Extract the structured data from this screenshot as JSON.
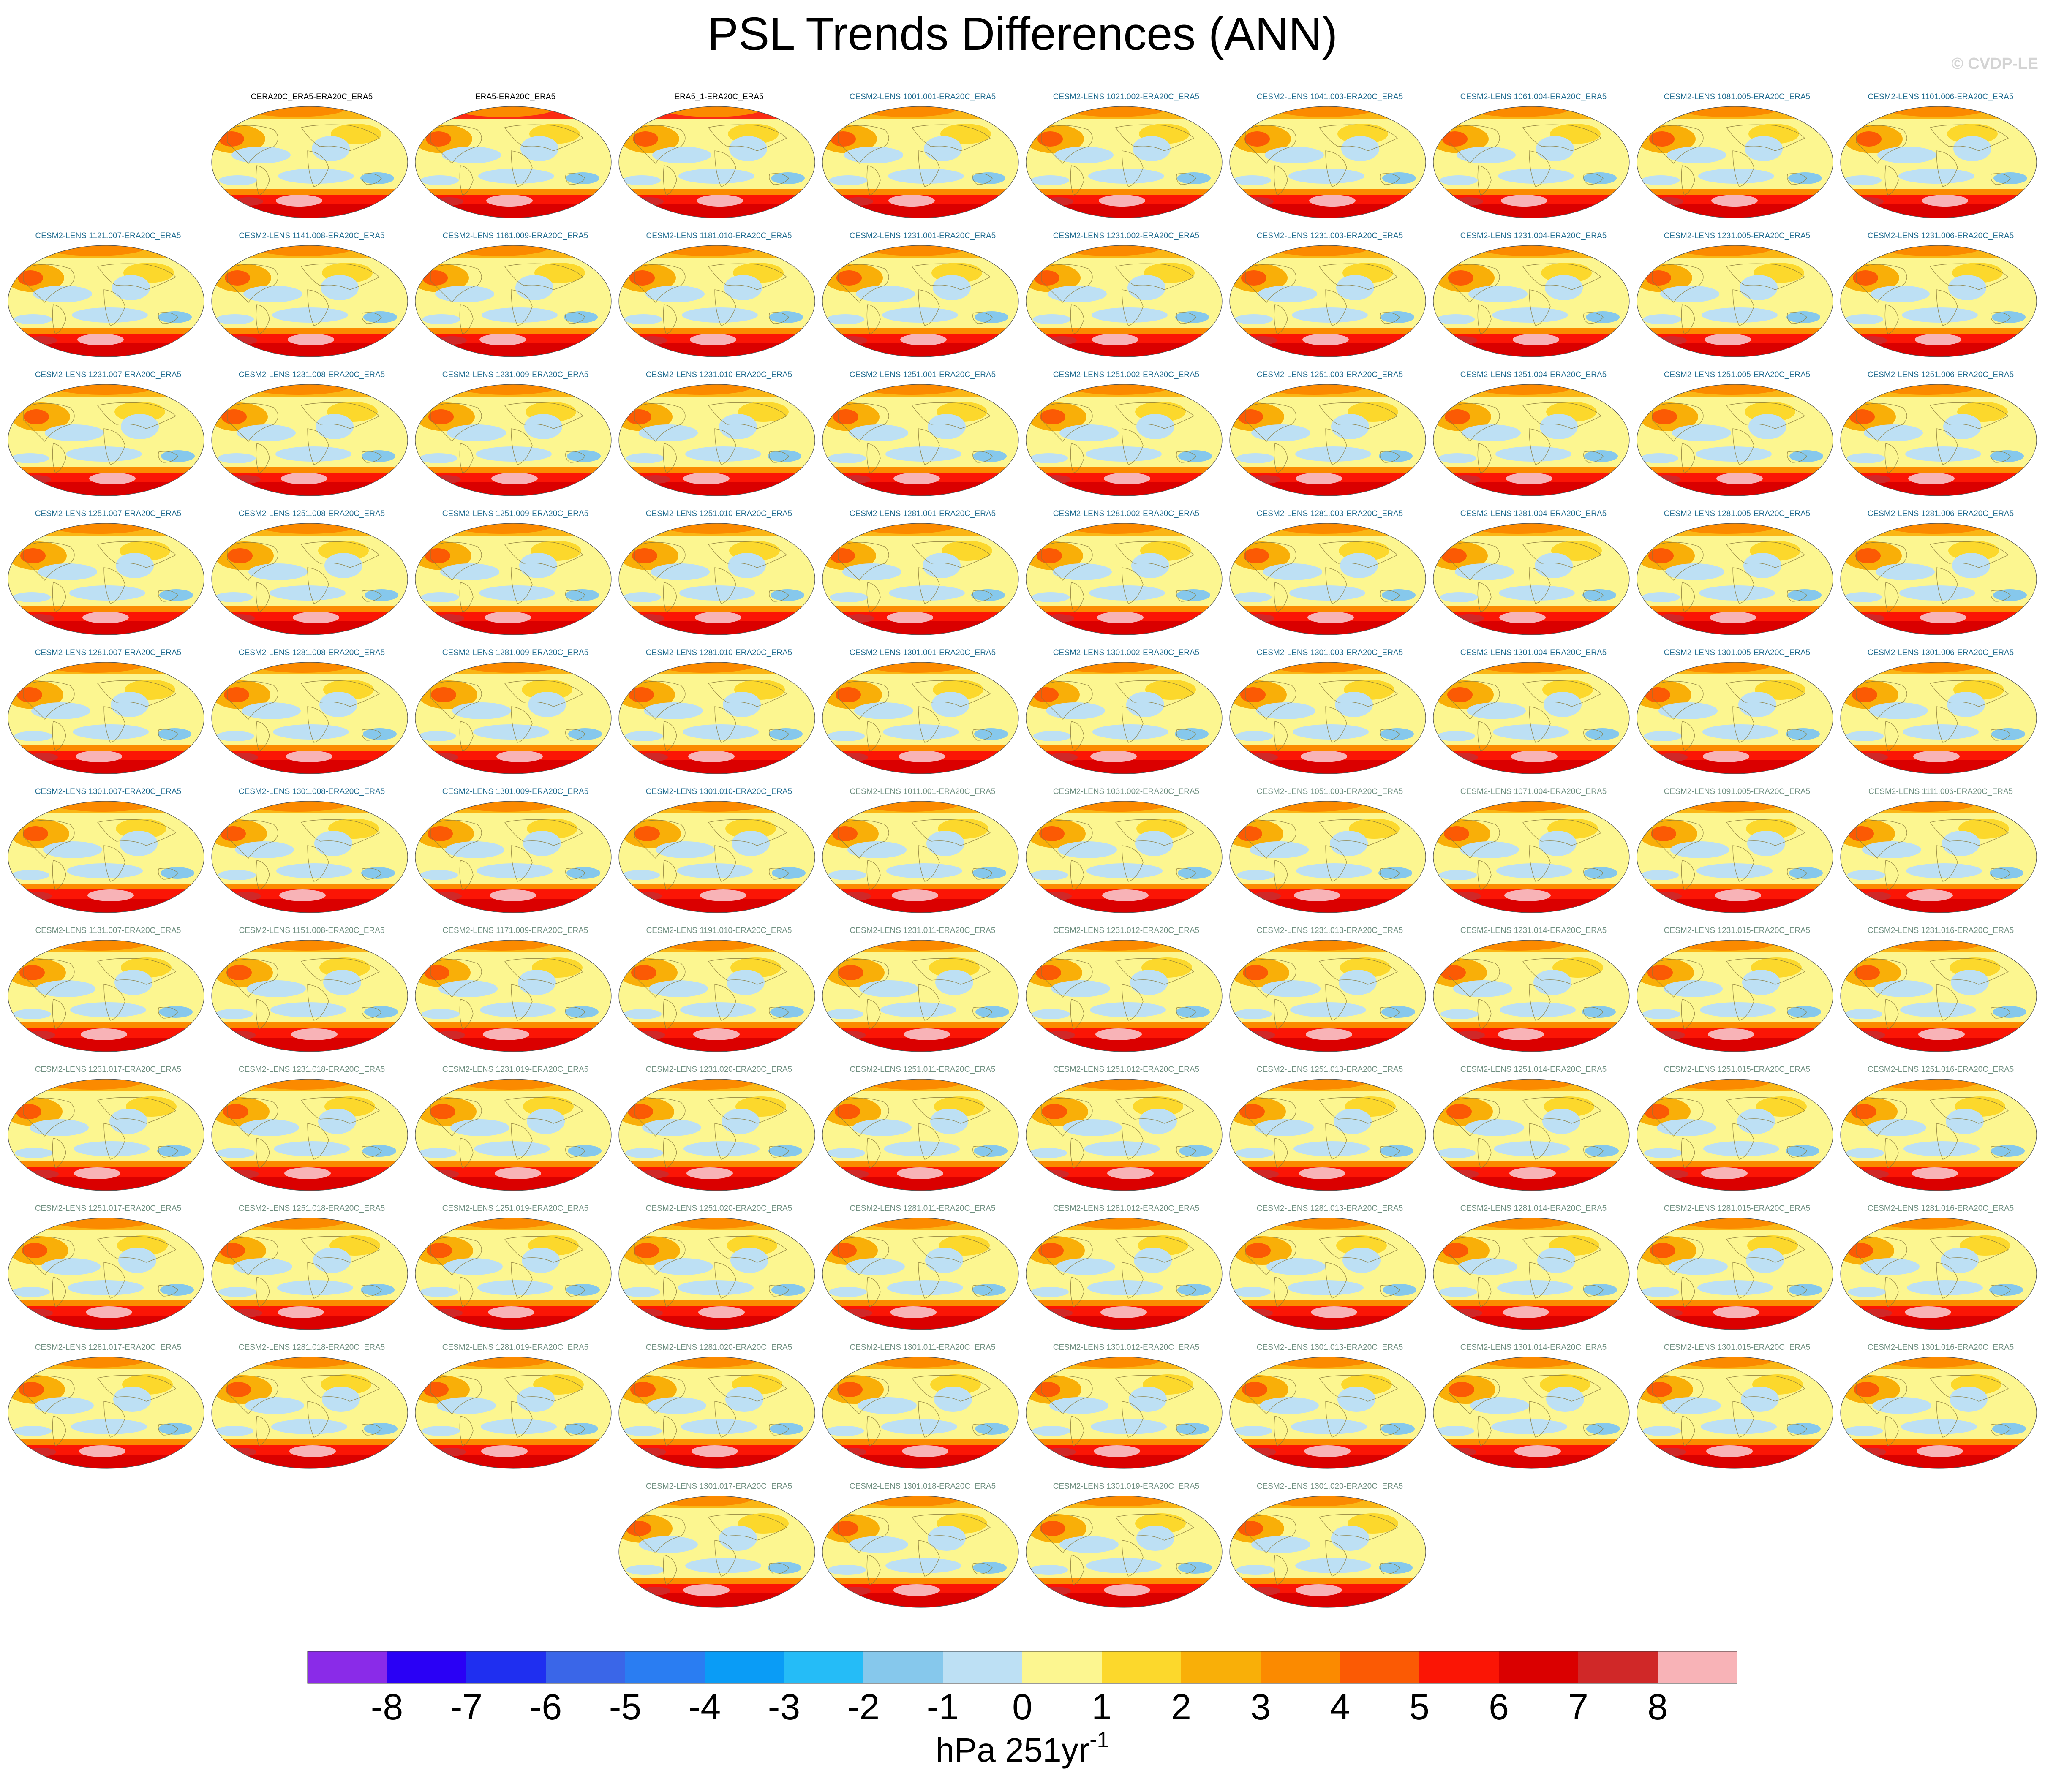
{
  "title": "PSL Trends Differences (ANN)",
  "copyright": "© CVDP-LE",
  "colorbar": {
    "ticks": [
      "-8",
      "-7",
      "-6",
      "-5",
      "-4",
      "-3",
      "-2",
      "-1",
      "0",
      "1",
      "2",
      "3",
      "4",
      "5",
      "6",
      "7",
      "8"
    ],
    "unit_main": "hPa 251yr",
    "unit_sup": "-1",
    "colors": [
      "#8a2be8",
      "#2a00f5",
      "#1f2ff0",
      "#3a66e8",
      "#2a7df2",
      "#0a9cf6",
      "#25bcf7",
      "#86c8ec",
      "#bde0f4",
      "#fcf690",
      "#fcd82c",
      "#f9af08",
      "#fb8a00",
      "#fb5a04",
      "#fb1505",
      "#da0000",
      "#d02828",
      "#f8b3b7"
    ]
  },
  "panels": [
    {
      "title": "CERA20C_ERA5-ERA20C_ERA5",
      "group": "obs"
    },
    {
      "title": "ERA5-ERA20C_ERA5",
      "group": "obs"
    },
    {
      "title": "ERA5_1-ERA20C_ERA5",
      "group": "obs"
    },
    {
      "title": "CESM2-LENS 1001.001-ERA20C_ERA5",
      "group": "g1"
    },
    {
      "title": "CESM2-LENS 1021.002-ERA20C_ERA5",
      "group": "g1"
    },
    {
      "title": "CESM2-LENS 1041.003-ERA20C_ERA5",
      "group": "g1"
    },
    {
      "title": "CESM2-LENS 1061.004-ERA20C_ERA5",
      "group": "g1"
    },
    {
      "title": "CESM2-LENS 1081.005-ERA20C_ERA5",
      "group": "g1"
    },
    {
      "title": "CESM2-LENS 1101.006-ERA20C_ERA5",
      "group": "g1"
    },
    {
      "title": "CESM2-LENS 1121.007-ERA20C_ERA5",
      "group": "g1"
    },
    {
      "title": "CESM2-LENS 1141.008-ERA20C_ERA5",
      "group": "g1"
    },
    {
      "title": "CESM2-LENS 1161.009-ERA20C_ERA5",
      "group": "g1"
    },
    {
      "title": "CESM2-LENS 1181.010-ERA20C_ERA5",
      "group": "g1"
    },
    {
      "title": "CESM2-LENS 1231.001-ERA20C_ERA5",
      "group": "g1"
    },
    {
      "title": "CESM2-LENS 1231.002-ERA20C_ERA5",
      "group": "g1"
    },
    {
      "title": "CESM2-LENS 1231.003-ERA20C_ERA5",
      "group": "g1"
    },
    {
      "title": "CESM2-LENS 1231.004-ERA20C_ERA5",
      "group": "g1"
    },
    {
      "title": "CESM2-LENS 1231.005-ERA20C_ERA5",
      "group": "g1"
    },
    {
      "title": "CESM2-LENS 1231.006-ERA20C_ERA5",
      "group": "g1"
    },
    {
      "title": "CESM2-LENS 1231.007-ERA20C_ERA5",
      "group": "g1"
    },
    {
      "title": "CESM2-LENS 1231.008-ERA20C_ERA5",
      "group": "g1"
    },
    {
      "title": "CESM2-LENS 1231.009-ERA20C_ERA5",
      "group": "g1"
    },
    {
      "title": "CESM2-LENS 1231.010-ERA20C_ERA5",
      "group": "g1"
    },
    {
      "title": "CESM2-LENS 1251.001-ERA20C_ERA5",
      "group": "g1"
    },
    {
      "title": "CESM2-LENS 1251.002-ERA20C_ERA5",
      "group": "g1"
    },
    {
      "title": "CESM2-LENS 1251.003-ERA20C_ERA5",
      "group": "g1"
    },
    {
      "title": "CESM2-LENS 1251.004-ERA20C_ERA5",
      "group": "g1"
    },
    {
      "title": "CESM2-LENS 1251.005-ERA20C_ERA5",
      "group": "g1"
    },
    {
      "title": "CESM2-LENS 1251.006-ERA20C_ERA5",
      "group": "g1"
    },
    {
      "title": "CESM2-LENS 1251.007-ERA20C_ERA5",
      "group": "g1"
    },
    {
      "title": "CESM2-LENS 1251.008-ERA20C_ERA5",
      "group": "g1"
    },
    {
      "title": "CESM2-LENS 1251.009-ERA20C_ERA5",
      "group": "g1"
    },
    {
      "title": "CESM2-LENS 1251.010-ERA20C_ERA5",
      "group": "g1"
    },
    {
      "title": "CESM2-LENS 1281.001-ERA20C_ERA5",
      "group": "g1"
    },
    {
      "title": "CESM2-LENS 1281.002-ERA20C_ERA5",
      "group": "g1"
    },
    {
      "title": "CESM2-LENS 1281.003-ERA20C_ERA5",
      "group": "g1"
    },
    {
      "title": "CESM2-LENS 1281.004-ERA20C_ERA5",
      "group": "g1"
    },
    {
      "title": "CESM2-LENS 1281.005-ERA20C_ERA5",
      "group": "g1"
    },
    {
      "title": "CESM2-LENS 1281.006-ERA20C_ERA5",
      "group": "g1"
    },
    {
      "title": "CESM2-LENS 1281.007-ERA20C_ERA5",
      "group": "g1"
    },
    {
      "title": "CESM2-LENS 1281.008-ERA20C_ERA5",
      "group": "g1"
    },
    {
      "title": "CESM2-LENS 1281.009-ERA20C_ERA5",
      "group": "g1"
    },
    {
      "title": "CESM2-LENS 1281.010-ERA20C_ERA5",
      "group": "g1"
    },
    {
      "title": "CESM2-LENS 1301.001-ERA20C_ERA5",
      "group": "g1"
    },
    {
      "title": "CESM2-LENS 1301.002-ERA20C_ERA5",
      "group": "g1"
    },
    {
      "title": "CESM2-LENS 1301.003-ERA20C_ERA5",
      "group": "g1"
    },
    {
      "title": "CESM2-LENS 1301.004-ERA20C_ERA5",
      "group": "g1"
    },
    {
      "title": "CESM2-LENS 1301.005-ERA20C_ERA5",
      "group": "g1"
    },
    {
      "title": "CESM2-LENS 1301.006-ERA20C_ERA5",
      "group": "g1"
    },
    {
      "title": "CESM2-LENS 1301.007-ERA20C_ERA5",
      "group": "g1"
    },
    {
      "title": "CESM2-LENS 1301.008-ERA20C_ERA5",
      "group": "g1"
    },
    {
      "title": "CESM2-LENS 1301.009-ERA20C_ERA5",
      "group": "g1"
    },
    {
      "title": "CESM2-LENS 1301.010-ERA20C_ERA5",
      "group": "g1"
    },
    {
      "title": "CESM2-LENS 1011.001-ERA20C_ERA5",
      "group": "g2"
    },
    {
      "title": "CESM2-LENS 1031.002-ERA20C_ERA5",
      "group": "g2"
    },
    {
      "title": "CESM2-LENS 1051.003-ERA20C_ERA5",
      "group": "g2"
    },
    {
      "title": "CESM2-LENS 1071.004-ERA20C_ERA5",
      "group": "g2"
    },
    {
      "title": "CESM2-LENS 1091.005-ERA20C_ERA5",
      "group": "g2"
    },
    {
      "title": "CESM2-LENS 1111.006-ERA20C_ERA5",
      "group": "g2"
    },
    {
      "title": "CESM2-LENS 1131.007-ERA20C_ERA5",
      "group": "g2"
    },
    {
      "title": "CESM2-LENS 1151.008-ERA20C_ERA5",
      "group": "g2"
    },
    {
      "title": "CESM2-LENS 1171.009-ERA20C_ERA5",
      "group": "g2"
    },
    {
      "title": "CESM2-LENS 1191.010-ERA20C_ERA5",
      "group": "g2"
    },
    {
      "title": "CESM2-LENS 1231.011-ERA20C_ERA5",
      "group": "g2"
    },
    {
      "title": "CESM2-LENS 1231.012-ERA20C_ERA5",
      "group": "g2"
    },
    {
      "title": "CESM2-LENS 1231.013-ERA20C_ERA5",
      "group": "g2"
    },
    {
      "title": "CESM2-LENS 1231.014-ERA20C_ERA5",
      "group": "g2"
    },
    {
      "title": "CESM2-LENS 1231.015-ERA20C_ERA5",
      "group": "g2"
    },
    {
      "title": "CESM2-LENS 1231.016-ERA20C_ERA5",
      "group": "g2"
    },
    {
      "title": "CESM2-LENS 1231.017-ERA20C_ERA5",
      "group": "g2"
    },
    {
      "title": "CESM2-LENS 1231.018-ERA20C_ERA5",
      "group": "g2"
    },
    {
      "title": "CESM2-LENS 1231.019-ERA20C_ERA5",
      "group": "g2"
    },
    {
      "title": "CESM2-LENS 1231.020-ERA20C_ERA5",
      "group": "g2"
    },
    {
      "title": "CESM2-LENS 1251.011-ERA20C_ERA5",
      "group": "g2"
    },
    {
      "title": "CESM2-LENS 1251.012-ERA20C_ERA5",
      "group": "g2"
    },
    {
      "title": "CESM2-LENS 1251.013-ERA20C_ERA5",
      "group": "g2"
    },
    {
      "title": "CESM2-LENS 1251.014-ERA20C_ERA5",
      "group": "g2"
    },
    {
      "title": "CESM2-LENS 1251.015-ERA20C_ERA5",
      "group": "g2"
    },
    {
      "title": "CESM2-LENS 1251.016-ERA20C_ERA5",
      "group": "g2"
    },
    {
      "title": "CESM2-LENS 1251.017-ERA20C_ERA5",
      "group": "g2"
    },
    {
      "title": "CESM2-LENS 1251.018-ERA20C_ERA5",
      "group": "g2"
    },
    {
      "title": "CESM2-LENS 1251.019-ERA20C_ERA5",
      "group": "g2"
    },
    {
      "title": "CESM2-LENS 1251.020-ERA20C_ERA5",
      "group": "g2"
    },
    {
      "title": "CESM2-LENS 1281.011-ERA20C_ERA5",
      "group": "g2"
    },
    {
      "title": "CESM2-LENS 1281.012-ERA20C_ERA5",
      "group": "g2"
    },
    {
      "title": "CESM2-LENS 1281.013-ERA20C_ERA5",
      "group": "g2"
    },
    {
      "title": "CESM2-LENS 1281.014-ERA20C_ERA5",
      "group": "g2"
    },
    {
      "title": "CESM2-LENS 1281.015-ERA20C_ERA5",
      "group": "g2"
    },
    {
      "title": "CESM2-LENS 1281.016-ERA20C_ERA5",
      "group": "g2"
    },
    {
      "title": "CESM2-LENS 1281.017-ERA20C_ERA5",
      "group": "g2"
    },
    {
      "title": "CESM2-LENS 1281.018-ERA20C_ERA5",
      "group": "g2"
    },
    {
      "title": "CESM2-LENS 1281.019-ERA20C_ERA5",
      "group": "g2"
    },
    {
      "title": "CESM2-LENS 1281.020-ERA20C_ERA5",
      "group": "g2"
    },
    {
      "title": "CESM2-LENS 1301.011-ERA20C_ERA5",
      "group": "g2"
    },
    {
      "title": "CESM2-LENS 1301.012-ERA20C_ERA5",
      "group": "g2"
    },
    {
      "title": "CESM2-LENS 1301.013-ERA20C_ERA5",
      "group": "g2"
    },
    {
      "title": "CESM2-LENS 1301.014-ERA20C_ERA5",
      "group": "g2"
    },
    {
      "title": "CESM2-LENS 1301.015-ERA20C_ERA5",
      "group": "g2"
    },
    {
      "title": "CESM2-LENS 1301.016-ERA20C_ERA5",
      "group": "g2"
    },
    {
      "title": "CESM2-LENS 1301.017-ERA20C_ERA5",
      "group": "g2"
    },
    {
      "title": "CESM2-LENS 1301.018-ERA20C_ERA5",
      "group": "g2"
    },
    {
      "title": "CESM2-LENS 1301.019-ERA20C_ERA5",
      "group": "g2"
    },
    {
      "title": "CESM2-LENS 1301.020-ERA20C_ERA5",
      "group": "g2"
    }
  ]
}
